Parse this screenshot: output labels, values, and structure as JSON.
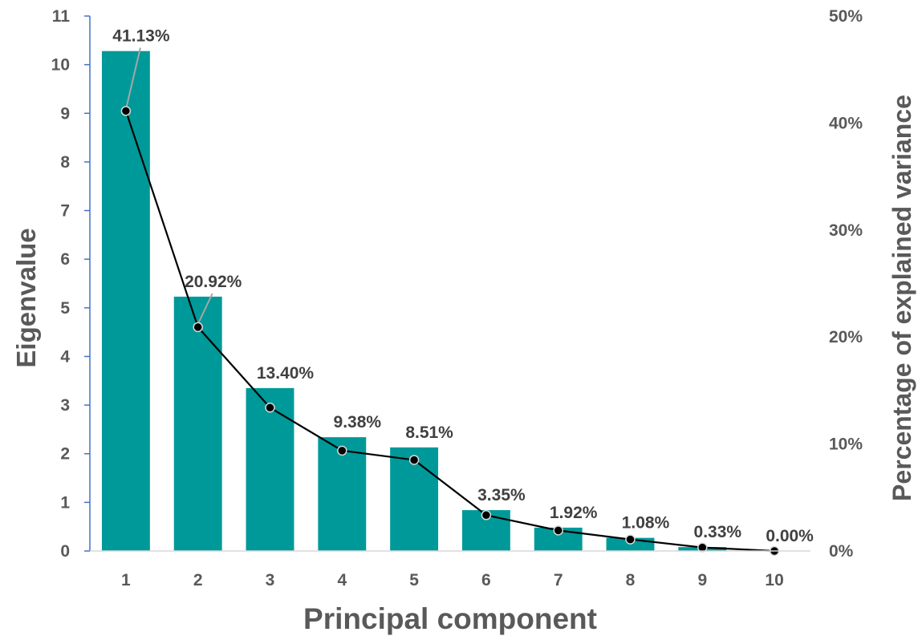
{
  "chart_data": {
    "type": "bar",
    "categories": [
      "1",
      "2",
      "3",
      "4",
      "5",
      "6",
      "7",
      "8",
      "9",
      "10"
    ],
    "series": [
      {
        "type": "bar",
        "axis": "left",
        "values": [
          10.28,
          5.23,
          3.35,
          2.34,
          2.13,
          0.84,
          0.48,
          0.27,
          0.08,
          0.0
        ],
        "color": "#009999"
      },
      {
        "type": "line",
        "axis": "right",
        "values": [
          41.13,
          20.92,
          13.4,
          9.38,
          8.51,
          3.35,
          1.92,
          1.08,
          0.33,
          0.0
        ],
        "labels": [
          "41.13%",
          "20.92%",
          "13.40%",
          "9.38%",
          "8.51%",
          "3.35%",
          "1.92%",
          "1.08%",
          "0.33%",
          "0.00%"
        ],
        "color": "#000000"
      }
    ],
    "xlabel": "Principal component",
    "ylabel": "Eigenvalue",
    "y2label": "Percentage of explained variance",
    "ylim": [
      0,
      11
    ],
    "y2lim": [
      0,
      50
    ],
    "yticks": [
      "0",
      "1",
      "2",
      "3",
      "4",
      "5",
      "6",
      "7",
      "8",
      "9",
      "10",
      "11"
    ],
    "y2ticks": [
      "0%",
      "10%",
      "20%",
      "30%",
      "40%",
      "50%"
    ],
    "y2tickvalues": [
      0,
      10,
      20,
      30,
      40,
      50
    ],
    "grid": false,
    "legend": "none"
  },
  "colors": {
    "axis_line": "#4472C4",
    "text": "#595959",
    "label_text": "#404040",
    "leader": "#A6A6A6"
  }
}
